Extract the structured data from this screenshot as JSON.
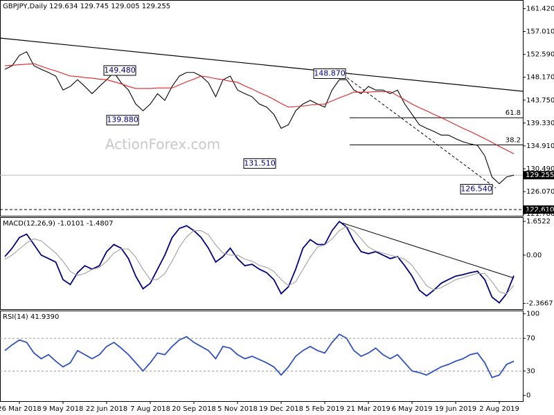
{
  "chart_data": [
    {
      "type": "line",
      "title": "GBPJPY,Daily  129.634 129.745 129.005 129.255",
      "watermark": "ActionForex.com",
      "ylim": [
        121.4,
        163.1
      ],
      "yticks": [
        {
          "value": 161.42,
          "label": "161.420"
        },
        {
          "value": 157.01,
          "label": "157.010"
        },
        {
          "value": 152.59,
          "label": "152.590"
        },
        {
          "value": 148.17,
          "label": "148.170"
        },
        {
          "value": 143.75,
          "label": "143.750"
        },
        {
          "value": 139.33,
          "label": "139.330"
        },
        {
          "value": 134.91,
          "label": "134.910"
        },
        {
          "value": 130.49,
          "label": "130.490"
        },
        {
          "value": 126.07,
          "label": "126.070"
        },
        {
          "value": 121.78,
          "label": "121.780"
        }
      ],
      "series": [
        {
          "color": "#000000",
          "values": [
            149.7,
            150.4,
            152.4,
            153.1,
            150.4,
            149.7,
            149.1,
            148.4,
            145.7,
            146.4,
            147.7,
            146.4,
            145.0,
            146.4,
            147.7,
            149.1,
            147.1,
            145.7,
            143.0,
            141.7,
            143.0,
            145.0,
            143.7,
            146.4,
            148.4,
            149.1,
            149.1,
            148.4,
            147.1,
            144.4,
            147.7,
            148.4,
            145.7,
            145.0,
            144.4,
            143.0,
            142.4,
            141.0,
            138.3,
            139.0,
            141.7,
            143.0,
            143.7,
            143.0,
            142.4,
            145.7,
            147.7,
            147.7,
            145.7,
            145.0,
            146.4,
            145.7,
            145.7,
            145.0,
            145.7,
            143.0,
            141.0,
            139.0,
            138.3,
            137.7,
            137.0,
            137.0,
            136.3,
            135.7,
            135.3,
            135.0,
            133.0,
            128.9,
            127.6,
            128.9,
            129.255
          ]
        },
        {
          "color": "#e02020",
          "values": [
            150.4,
            150.5,
            150.6,
            150.7,
            150.8,
            150.3,
            149.8,
            149.4,
            148.9,
            148.4,
            148.3,
            148.1,
            148.0,
            147.8,
            147.7,
            147.3,
            146.9,
            146.4,
            146.0,
            146.0,
            146.0,
            146.1,
            146.1,
            146.1,
            146.7,
            147.3,
            147.8,
            148.4,
            148.2,
            147.9,
            147.7,
            147.4,
            147.2,
            146.5,
            145.9,
            145.2,
            144.6,
            143.9,
            143.1,
            142.4,
            142.5,
            142.6,
            142.8,
            142.9,
            143.0,
            143.6,
            144.2,
            144.7,
            145.3,
            145.3,
            145.3,
            145.4,
            145.4,
            145.4,
            144.6,
            143.8,
            143.0,
            142.3,
            141.7,
            141.0,
            140.4,
            139.7,
            139.0,
            138.3,
            137.7,
            137.0,
            136.3,
            135.6,
            134.8,
            134.1,
            133.4
          ]
        }
      ],
      "annotations": [
        {
          "value": 149.48,
          "label": "149.480"
        },
        {
          "value": 148.87,
          "label": "148.870"
        },
        {
          "value": 139.88,
          "label": "139.880"
        },
        {
          "value": 131.51,
          "label": "131.510"
        },
        {
          "value": 126.54,
          "label": "126.540"
        }
      ],
      "fib_levels": [
        {
          "label": "61.8",
          "value": 140.35
        },
        {
          "label": "38.2",
          "value": 135.1
        }
      ],
      "current_price": 129.255,
      "support": {
        "value": 122.61,
        "label": "122.610"
      }
    },
    {
      "type": "line",
      "title": "MACD(12,26,9) -1.0101 -1.4807",
      "ylim": [
        -2.65,
        1.86
      ],
      "yticks": [
        1.6522,
        {
          "value": 0,
          "label": "0.00"
        },
        -2.3667
      ],
      "series": [
        {
          "color": "#000080",
          "values": [
            -0.07,
            0.34,
            0.86,
            1.03,
            0.52,
            0,
            -0.17,
            -0.34,
            -1.2,
            -1.44,
            -0.86,
            -0.52,
            -0.69,
            -0.52,
            0.17,
            0.52,
            0.34,
            -0.17,
            -1.03,
            -1.65,
            -1.38,
            -0.69,
            0,
            0.86,
            1.31,
            1.44,
            1.2,
            0.86,
            0.34,
            -0.34,
            -0.07,
            0.34,
            -0.17,
            -0.52,
            -0.45,
            -0.69,
            -0.86,
            -1.2,
            -1.89,
            -1.55,
            -0.69,
            0.34,
            0.76,
            0.52,
            0.52,
            1.2,
            1.65,
            1.38,
            0.69,
            0.17,
            0.07,
            0.17,
            0,
            -0.17,
            -0.07,
            -0.52,
            -1.03,
            -1.72,
            -2.0,
            -1.72,
            -1.38,
            -1.2,
            -1.03,
            -0.96,
            -0.86,
            -0.79,
            -1.2,
            -2.06,
            -2.34,
            -1.89,
            -1.0101
          ]
        },
        {
          "color": "#a0a0a0",
          "values": [
            -0.2,
            0.0,
            0.3,
            0.6,
            0.8,
            0.7,
            0.4,
            0.1,
            -0.3,
            -0.8,
            -1.0,
            -0.9,
            -0.7,
            -0.6,
            -0.3,
            0.1,
            0.3,
            0.3,
            -0.1,
            -0.7,
            -1.2,
            -1.2,
            -0.9,
            -0.3,
            0.4,
            0.9,
            1.2,
            1.2,
            1.0,
            0.5,
            0.1,
            0.0,
            0.0,
            -0.2,
            -0.3,
            -0.5,
            -0.6,
            -0.8,
            -1.2,
            -1.5,
            -1.3,
            -0.7,
            -0.1,
            0.4,
            0.5,
            0.8,
            1.2,
            1.4,
            1.2,
            0.8,
            0.4,
            0.2,
            0.1,
            0.0,
            -0.1,
            -0.2,
            -0.5,
            -1.0,
            -1.5,
            -1.7,
            -1.6,
            -1.4,
            -1.2,
            -1.1,
            -1.0,
            -0.9,
            -0.9,
            -1.3,
            -1.8,
            -1.9,
            -1.4807
          ]
        }
      ]
    },
    {
      "type": "line",
      "title": "RSI(14) 41.9390",
      "ylim": [
        -7,
        104
      ],
      "yticks": [
        100,
        70,
        30,
        0
      ],
      "levels": [
        70,
        30
      ],
      "categories": [
        null,
        null,
        "26 Mar 2018",
        null,
        null,
        null,
        null,
        null,
        "9 May 2018",
        null,
        null,
        null,
        null,
        null,
        "22 Jun 2018",
        null,
        null,
        null,
        null,
        null,
        "7 Aug 2018",
        null,
        null,
        null,
        null,
        null,
        "20 Sep 2018",
        null,
        null,
        null,
        null,
        null,
        "5 Nov 2018",
        null,
        null,
        null,
        null,
        null,
        "19 Dec 2018",
        null,
        null,
        null,
        null,
        null,
        "5 Feb 2019",
        null,
        null,
        null,
        null,
        null,
        "21 Mar 2019",
        null,
        null,
        null,
        null,
        null,
        "6 May 2019",
        null,
        null,
        null,
        null,
        null,
        "19 Jun 2019",
        null,
        null,
        null,
        null,
        null,
        "2 Aug 2019",
        null,
        null
      ],
      "series": [
        {
          "color": "#3050c0",
          "values": [
            55,
            62,
            68,
            65,
            52,
            45,
            50,
            42,
            35,
            40,
            55,
            50,
            45,
            50,
            60,
            65,
            58,
            50,
            40,
            30,
            40,
            52,
            50,
            60,
            68,
            72,
            65,
            60,
            55,
            45,
            60,
            58,
            50,
            45,
            48,
            44,
            40,
            35,
            25,
            35,
            48,
            55,
            60,
            55,
            52,
            65,
            75,
            70,
            55,
            48,
            52,
            58,
            50,
            45,
            50,
            40,
            30,
            28,
            25,
            30,
            35,
            38,
            42,
            45,
            50,
            52,
            40,
            22,
            25,
            38,
            41.939
          ]
        }
      ]
    }
  ]
}
